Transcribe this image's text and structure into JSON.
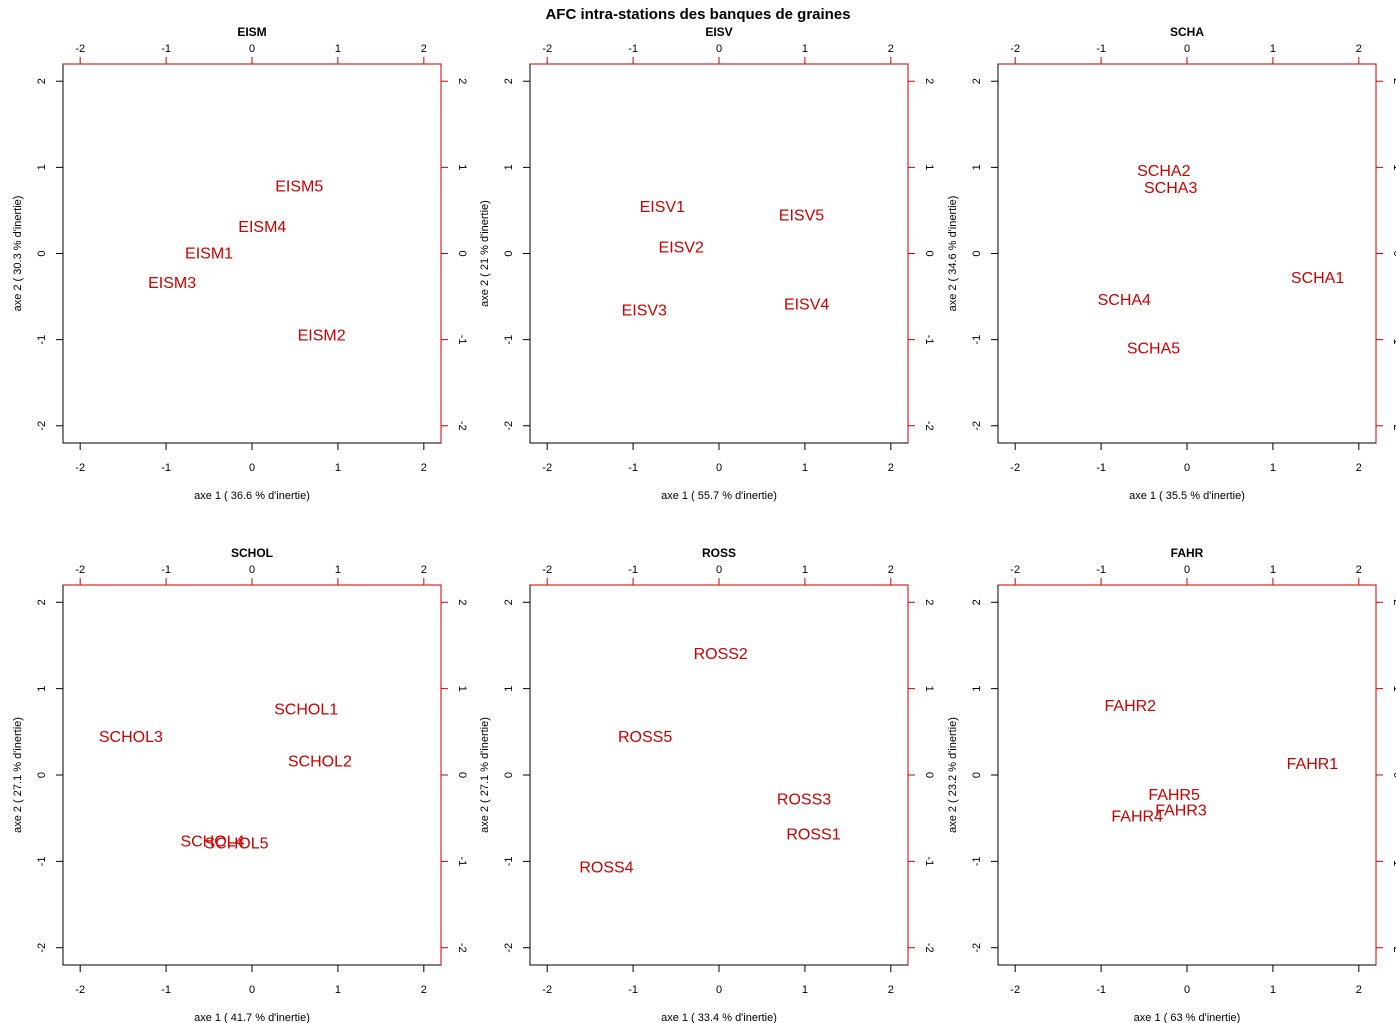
{
  "figure": {
    "title": "AFC intra-stations des banques de graines"
  },
  "style": {
    "point_color": "#cc0000",
    "top_right_tick_color": "#cc0000",
    "axis_color": "#000000"
  },
  "chart_data": [
    {
      "type": "scatter",
      "title": "EISM",
      "xlabel": "axe 1 ( 36.6 % d'inertie)",
      "ylabel": "axe 2 ( 30.3 % d'inertie)",
      "xlim": [
        -2.2,
        2.2
      ],
      "ylim": [
        -2.2,
        2.2
      ],
      "ticks": [
        -2,
        -1,
        0,
        1,
        2
      ],
      "tick_labels": [
        "-2",
        "-1",
        "0",
        "1",
        "2"
      ],
      "points": [
        {
          "label": "EISM5",
          "x": 0.55,
          "y": 0.79
        },
        {
          "label": "EISM4",
          "x": 0.12,
          "y": 0.32
        },
        {
          "label": "EISM1",
          "x": -0.5,
          "y": 0.01
        },
        {
          "label": "EISM3",
          "x": -0.93,
          "y": -0.33
        },
        {
          "label": "EISM2",
          "x": 0.81,
          "y": -0.94
        }
      ]
    },
    {
      "type": "scatter",
      "title": "EISV",
      "xlabel": "axe 1 ( 55.7 % d'inertie)",
      "ylabel": "axe 2 ( 21 % d'inertie)",
      "xlim": [
        -2.2,
        2.2
      ],
      "ylim": [
        -2.2,
        2.2
      ],
      "ticks": [
        -2,
        -1,
        0,
        1,
        2
      ],
      "tick_labels": [
        "-2",
        "-1",
        "0",
        "1",
        "2"
      ],
      "points": [
        {
          "label": "EISV1",
          "x": -0.66,
          "y": 0.55
        },
        {
          "label": "EISV5",
          "x": 0.96,
          "y": 0.45
        },
        {
          "label": "EISV2",
          "x": -0.44,
          "y": 0.08
        },
        {
          "label": "EISV4",
          "x": 1.02,
          "y": -0.58
        },
        {
          "label": "EISV3",
          "x": -0.87,
          "y": -0.65
        }
      ]
    },
    {
      "type": "scatter",
      "title": "SCHA",
      "xlabel": "axe 1 ( 35.5 % d'inertie)",
      "ylabel": "axe 2 ( 34.6 % d'inertie)",
      "xlim": [
        -2.2,
        2.2
      ],
      "ylim": [
        -2.2,
        2.2
      ],
      "ticks": [
        -2,
        -1,
        0,
        1,
        2
      ],
      "tick_labels": [
        "-2",
        "-1",
        "0",
        "1",
        "2"
      ],
      "points": [
        {
          "label": "SCHA2",
          "x": -0.27,
          "y": 0.97
        },
        {
          "label": "SCHA3",
          "x": -0.19,
          "y": 0.77
        },
        {
          "label": "SCHA1",
          "x": 1.52,
          "y": -0.27
        },
        {
          "label": "SCHA4",
          "x": -0.73,
          "y": -0.53
        },
        {
          "label": "SCHA5",
          "x": -0.39,
          "y": -1.09
        }
      ]
    },
    {
      "type": "scatter",
      "title": "SCHOL",
      "xlabel": "axe 1 ( 41.7 % d'inertie)",
      "ylabel": "axe 2 ( 27.1 % d'inertie)",
      "xlim": [
        -2.2,
        2.2
      ],
      "ylim": [
        -2.2,
        2.2
      ],
      "ticks": [
        -2,
        -1,
        0,
        1,
        2
      ],
      "tick_labels": [
        "-2",
        "-1",
        "0",
        "1",
        "2"
      ],
      "points": [
        {
          "label": "SCHOL1",
          "x": 0.63,
          "y": 0.77
        },
        {
          "label": "SCHOL3",
          "x": -1.41,
          "y": 0.45
        },
        {
          "label": "SCHOL2",
          "x": 0.79,
          "y": 0.17
        },
        {
          "label": "SCHOL4",
          "x": -0.46,
          "y": -0.76
        },
        {
          "label": "SCHOL5",
          "x": -0.18,
          "y": -0.78
        }
      ]
    },
    {
      "type": "scatter",
      "title": "ROSS",
      "xlabel": "axe 1 ( 33.4 % d'inertie)",
      "ylabel": "axe 2 ( 27.1 % d'inertie)",
      "xlim": [
        -2.2,
        2.2
      ],
      "ylim": [
        -2.2,
        2.2
      ],
      "ticks": [
        -2,
        -1,
        0,
        1,
        2
      ],
      "tick_labels": [
        "-2",
        "-1",
        "0",
        "1",
        "2"
      ],
      "points": [
        {
          "label": "ROSS2",
          "x": 0.02,
          "y": 1.41
        },
        {
          "label": "ROSS5",
          "x": -0.86,
          "y": 0.45
        },
        {
          "label": "ROSS3",
          "x": 0.99,
          "y": -0.27
        },
        {
          "label": "ROSS1",
          "x": 1.1,
          "y": -0.68
        },
        {
          "label": "ROSS4",
          "x": -1.31,
          "y": -1.06
        }
      ]
    },
    {
      "type": "scatter",
      "title": "FAHR",
      "xlabel": "axe 1 ( 63 % d'inertie)",
      "ylabel": "axe 2 ( 23.2 % d'inertie)",
      "xlim": [
        -2.2,
        2.2
      ],
      "ylim": [
        -2.2,
        2.2
      ],
      "ticks": [
        -2,
        -1,
        0,
        1,
        2
      ],
      "tick_labels": [
        "-2",
        "-1",
        "0",
        "1",
        "2"
      ],
      "points": [
        {
          "label": "FAHR2",
          "x": -0.66,
          "y": 0.81
        },
        {
          "label": "FAHR1",
          "x": 1.46,
          "y": 0.14
        },
        {
          "label": "FAHR5",
          "x": -0.15,
          "y": -0.22
        },
        {
          "label": "FAHR3",
          "x": -0.07,
          "y": -0.4
        },
        {
          "label": "FAHR4",
          "x": -0.58,
          "y": -0.47
        }
      ]
    }
  ]
}
